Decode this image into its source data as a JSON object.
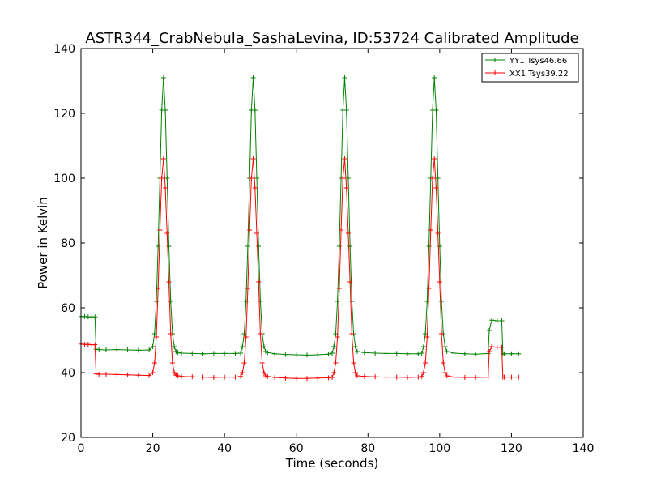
{
  "chart_data": {
    "type": "line",
    "title": "ASTR344_CrabNebula_SashaLevina, ID:53724 Calibrated Amplitude",
    "xlabel": "Time (seconds)",
    "ylabel": "Power in Kelvin",
    "xlim": [
      0,
      140
    ],
    "ylim": [
      20,
      140
    ],
    "xticks": [
      0,
      20,
      40,
      60,
      80,
      100,
      120,
      140
    ],
    "yticks": [
      20,
      40,
      60,
      80,
      100,
      120,
      140
    ],
    "grid": false,
    "legend_position": "top-right",
    "marker": "+",
    "series": [
      {
        "name": "YY1 Tsys46.66",
        "color": "#008000",
        "x": [
          0,
          1,
          2,
          3,
          3.9,
          4.2,
          5,
          7,
          10,
          13,
          16,
          19,
          20,
          20.5,
          21,
          21.5,
          22,
          22.5,
          23,
          23.5,
          24,
          24.5,
          25,
          25.5,
          26,
          26.5,
          27,
          28,
          31,
          34,
          37,
          40,
          43,
          44.5,
          45,
          45.5,
          46,
          46.5,
          47,
          47.5,
          48,
          48.5,
          49,
          49.5,
          50,
          50.5,
          51,
          51.5,
          52,
          54,
          57,
          60,
          63,
          66,
          69,
          70,
          70.5,
          71,
          71.5,
          72,
          72.5,
          73,
          73.5,
          74,
          74.5,
          75,
          75.5,
          76,
          76.5,
          77,
          79,
          82,
          85,
          88,
          91,
          94,
          95,
          95.5,
          96,
          96.5,
          97,
          97.5,
          98,
          98.5,
          99,
          99.5,
          100,
          100.5,
          101,
          101.5,
          102,
          104,
          107,
          110,
          113.5,
          113.8,
          114.5,
          116,
          117.3,
          117.6,
          118,
          120,
          122
        ],
        "values": [
          57.3,
          57.3,
          57.2,
          57.2,
          57.2,
          47.2,
          47.1,
          47.0,
          47.1,
          47.0,
          46.9,
          47.0,
          48.0,
          52,
          62,
          79,
          100,
          121,
          131,
          121,
          100,
          79,
          62,
          52,
          48,
          46.5,
          46.2,
          46.0,
          45.9,
          45.8,
          45.9,
          45.9,
          45.9,
          46.0,
          48.0,
          52,
          62,
          79,
          100,
          121,
          131,
          121,
          100,
          79,
          62,
          52,
          48,
          46.5,
          46.2,
          45.8,
          45.6,
          45.5,
          45.4,
          45.5,
          45.7,
          46.0,
          48.0,
          52,
          62,
          79,
          100,
          121,
          131,
          121,
          100,
          79,
          62,
          52,
          48,
          46.5,
          46.2,
          46.0,
          45.9,
          45.9,
          45.8,
          45.8,
          46.0,
          48.0,
          52,
          62,
          79,
          100,
          121,
          131,
          121,
          100,
          79,
          62,
          52,
          48,
          46.5,
          46.0,
          45.8,
          45.7,
          45.9,
          53.0,
          56.2,
          56.0,
          56.0,
          45.8,
          45.8,
          45.8,
          45.8
        ]
      },
      {
        "name": "XX1 Tsys39.22",
        "color": "#ff0000",
        "x": [
          0,
          1,
          2,
          3,
          3.9,
          4.2,
          5,
          7,
          10,
          13,
          16,
          19,
          20,
          20.5,
          21,
          21.5,
          22,
          22.5,
          23,
          23.5,
          24,
          24.5,
          25,
          25.5,
          26,
          26.5,
          27,
          28,
          31,
          34,
          37,
          40,
          43,
          44.5,
          45,
          45.5,
          46,
          46.5,
          47,
          47.5,
          48,
          48.5,
          49,
          49.5,
          50,
          50.5,
          51,
          51.5,
          52,
          54,
          57,
          60,
          63,
          66,
          69,
          70,
          70.5,
          71,
          71.5,
          72,
          72.5,
          73,
          73.5,
          74,
          74.5,
          75,
          75.5,
          76,
          76.5,
          77,
          79,
          82,
          85,
          88,
          91,
          94,
          95,
          95.5,
          96,
          96.5,
          97,
          97.5,
          98,
          98.5,
          99,
          99.5,
          100,
          100.5,
          101,
          101.5,
          102,
          104,
          107,
          110,
          113.5,
          113.8,
          114.5,
          116,
          117.3,
          117.6,
          118,
          120,
          122
        ],
        "values": [
          48.8,
          48.7,
          48.7,
          48.6,
          48.6,
          39.6,
          39.5,
          39.5,
          39.4,
          39.3,
          39.2,
          39.1,
          40.0,
          43,
          51,
          66,
          84,
          100,
          106,
          97,
          83,
          68,
          52,
          43,
          40,
          39.2,
          39.0,
          38.8,
          38.7,
          38.6,
          38.5,
          38.6,
          38.6,
          38.8,
          40.0,
          43,
          51,
          66,
          84,
          100,
          106,
          97,
          83,
          68,
          52,
          43,
          40,
          39.0,
          38.8,
          38.5,
          38.3,
          38.2,
          38.2,
          38.3,
          38.4,
          38.5,
          40.0,
          43,
          51,
          66,
          84,
          100,
          106,
          97,
          83,
          68,
          52,
          43,
          40,
          39.0,
          38.8,
          38.7,
          38.6,
          38.6,
          38.5,
          38.6,
          38.8,
          40.0,
          43,
          51,
          66,
          84,
          100,
          106,
          97,
          83,
          68,
          52,
          43,
          40,
          39.0,
          38.6,
          38.5,
          38.5,
          38.6,
          46.5,
          48.0,
          47.8,
          47.8,
          38.6,
          38.6,
          38.6,
          38.6
        ]
      }
    ]
  }
}
